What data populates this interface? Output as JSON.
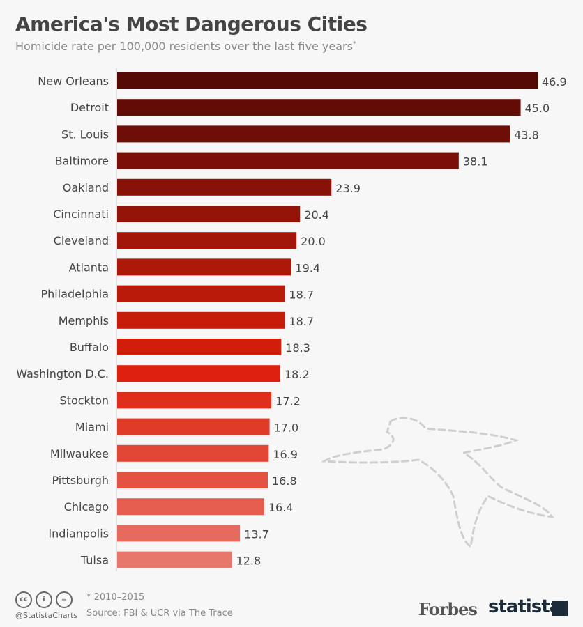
{
  "chart_data": {
    "type": "bar",
    "orientation": "horizontal",
    "title": "America's Most Dangerous Cities",
    "subtitle": "Homicide rate per 100,000 residents over the last five years",
    "subtitle_mark": "*",
    "categories": [
      "New Orleans",
      "Detroit",
      "St. Louis",
      "Baltimore",
      "Oakland",
      "Cincinnati",
      "Cleveland",
      "Atlanta",
      "Philadelphia",
      "Memphis",
      "Buffalo",
      "Washington D.C.",
      "Stockton",
      "Miami",
      "Milwaukee",
      "Pittsburgh",
      "Chicago",
      "Indianpolis",
      "Tulsa"
    ],
    "values": [
      46.9,
      45.0,
      43.8,
      38.1,
      23.9,
      20.4,
      20.0,
      19.4,
      18.7,
      18.7,
      18.3,
      18.2,
      17.2,
      17.0,
      16.9,
      16.8,
      16.4,
      13.7,
      12.8
    ],
    "xlim": [
      0,
      46.9
    ],
    "grid": false,
    "data_labels": true,
    "colors": {
      "darkest": "#560a05",
      "mid": "#dd1f0b",
      "lightest": "#e8766a"
    }
  },
  "footer": {
    "note": "* 2010–2015",
    "source": "Source: FBI & UCR via The Trace",
    "handle": "@StatistaCharts",
    "license_icons": [
      "cc",
      "by",
      "nd"
    ]
  },
  "logos": {
    "forbes": "Forbes",
    "statista": "statista"
  }
}
